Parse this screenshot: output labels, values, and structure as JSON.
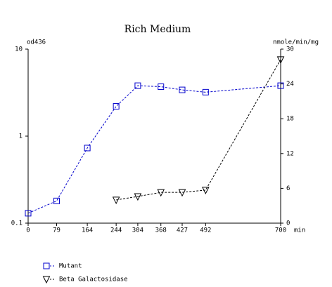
{
  "chart_data": {
    "type": "line",
    "title": "Rich Medium",
    "y_label": "od436",
    "y2_label": "nmole/min/mg",
    "x_label": "min",
    "xlim": [
      0,
      700
    ],
    "xticks": [
      0,
      79,
      164,
      244,
      304,
      368,
      427,
      492,
      700
    ],
    "ylim": [
      0.1,
      10
    ],
    "yticks": [
      0.1,
      1,
      10
    ],
    "yscale": "log",
    "y2lim": [
      0,
      30
    ],
    "y2ticks": [
      0,
      6,
      12,
      18,
      24,
      30
    ],
    "line_style": "dashed",
    "series": [
      {
        "name": "Mutant",
        "color": "#0000cc",
        "marker": "square",
        "axis": "y",
        "x": [
          0,
          79,
          164,
          244,
          304,
          368,
          427,
          492,
          700
        ],
        "values": [
          0.13,
          0.18,
          0.73,
          2.2,
          3.8,
          3.7,
          3.4,
          3.2,
          3.8
        ]
      },
      {
        "name": "Beta Galactosidase",
        "color": "#000000",
        "marker": "triangle-down",
        "axis": "y2",
        "x": [
          244,
          304,
          368,
          427,
          492,
          700
        ],
        "values": [
          4.0,
          4.6,
          5.3,
          5.3,
          5.7,
          28.2
        ]
      }
    ]
  }
}
